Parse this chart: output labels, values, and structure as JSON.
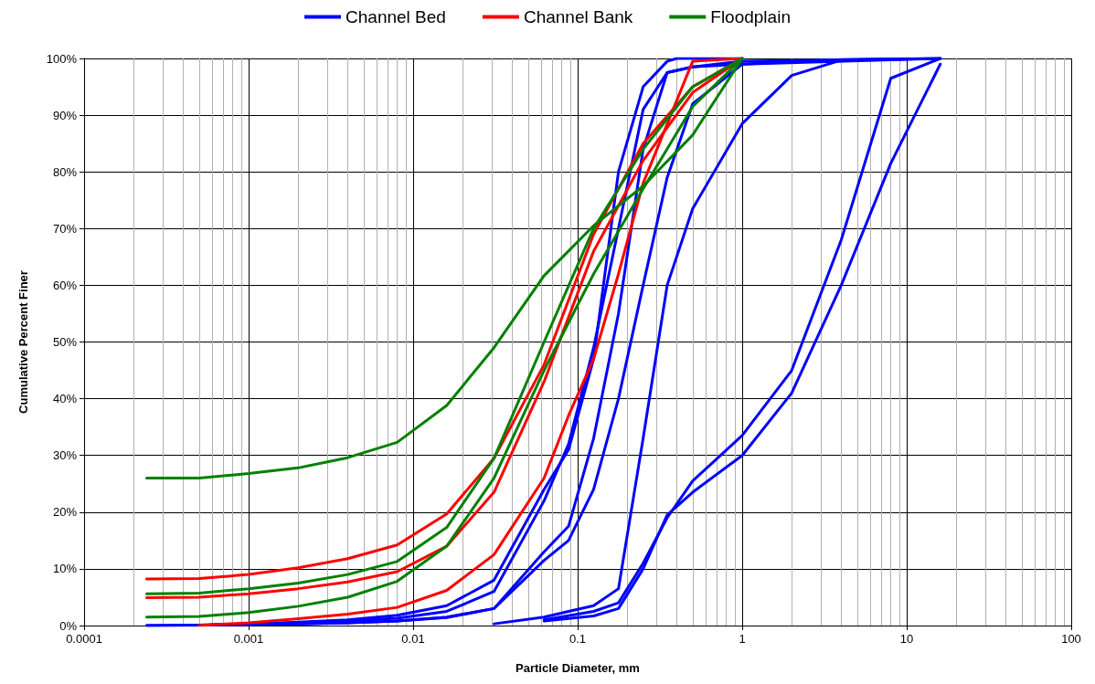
{
  "chart_data": {
    "type": "line",
    "xlabel": "Particle Diameter, mm",
    "ylabel": "Cumulative Percent Finer",
    "log": "x",
    "grid": true,
    "legend": "top",
    "marker": "none",
    "line_style": "solid",
    "xlim": [
      0.0001,
      100
    ],
    "xticks": [
      0.0001,
      0.001,
      0.01,
      0.1,
      1,
      10,
      100
    ],
    "ylim": [
      0,
      100
    ],
    "yticks": [
      {
        "value": 0,
        "label": "0%"
      },
      {
        "value": 10,
        "label": "10%"
      },
      {
        "value": 20,
        "label": "20%"
      },
      {
        "value": 30,
        "label": "30%"
      },
      {
        "value": 40,
        "label": "40%"
      },
      {
        "value": 50,
        "label": "50%"
      },
      {
        "value": 60,
        "label": "60%"
      },
      {
        "value": 70,
        "label": "70%"
      },
      {
        "value": 80,
        "label": "80%"
      },
      {
        "value": 90,
        "label": "90%"
      },
      {
        "value": 100,
        "label": "100%"
      }
    ],
    "series": [
      {
        "name": "Channel Bed",
        "color": "#0000ff",
        "x": [
          0.00024,
          0.0005,
          0.001,
          0.002,
          0.004,
          0.008,
          0.016,
          0.031,
          0.0625,
          0.088,
          0.125,
          0.177,
          0.25,
          0.35,
          0.4,
          1
        ],
        "values": [
          0,
          0.1,
          0.3,
          0.6,
          1,
          1.8,
          3.5,
          8,
          24,
          31,
          47,
          80,
          95,
          99.5,
          100,
          100
        ]
      },
      {
        "color": "#0000ff",
        "x": [
          0.00024,
          0.0005,
          0.001,
          0.002,
          0.004,
          0.008,
          0.016,
          0.031,
          0.0625,
          0.088,
          0.125,
          0.177,
          0.25,
          0.35,
          0.5,
          1,
          16
        ],
        "values": [
          0,
          0.1,
          0.2,
          0.4,
          0.8,
          1.3,
          2.5,
          6,
          22,
          32,
          49,
          70,
          91,
          97.5,
          98.5,
          99,
          100
        ]
      },
      {
        "color": "#0000ff",
        "x": [
          0.0005,
          0.001,
          0.002,
          0.004,
          0.008,
          0.016,
          0.031,
          0.0625,
          0.088,
          0.125,
          0.177,
          0.25,
          0.35,
          0.5,
          1,
          16
        ],
        "values": [
          0.1,
          0.2,
          0.3,
          0.5,
          0.8,
          1.5,
          3,
          13,
          17.5,
          33,
          55,
          84,
          97.5,
          98.5,
          99.5,
          100
        ]
      },
      {
        "color": "#0000ff",
        "x": [
          0.001,
          0.002,
          0.004,
          0.008,
          0.016,
          0.031,
          0.0625,
          0.088,
          0.125,
          0.177,
          0.25,
          0.35,
          0.5,
          1,
          4,
          16
        ],
        "values": [
          0.2,
          0.3,
          0.5,
          0.8,
          1.4,
          3,
          11.5,
          15,
          24,
          40,
          60,
          79,
          92,
          99,
          99.8,
          100
        ]
      },
      {
        "color": "#0000ff",
        "x": [
          0.031,
          0.0625,
          0.088,
          0.125,
          0.177,
          0.25,
          0.35,
          0.5,
          1,
          2,
          4,
          16
        ],
        "values": [
          0.3,
          1.5,
          2.5,
          3.5,
          6.5,
          33,
          60,
          73.5,
          88.5,
          97,
          99.7,
          100
        ]
      },
      {
        "color": "#0000ff",
        "x": [
          0.0625,
          0.125,
          0.177,
          0.25,
          0.35,
          0.5,
          1,
          2,
          4,
          8,
          16
        ],
        "values": [
          1,
          2.5,
          4,
          11,
          19,
          25.5,
          33.5,
          45,
          68,
          96.5,
          100
        ]
      },
      {
        "color": "#0000ff",
        "x": [
          0.0625,
          0.125,
          0.177,
          0.25,
          0.35,
          0.5,
          1,
          2,
          4,
          8,
          16
        ],
        "values": [
          0.8,
          1.7,
          3,
          10,
          19.5,
          23.5,
          30,
          41,
          60,
          81.5,
          99
        ]
      },
      {
        "name": "Channel Bank",
        "color": "#ff0000",
        "x": [
          0.00024,
          0.0005,
          0.001,
          0.002,
          0.004,
          0.008,
          0.016,
          0.031,
          0.0625,
          0.125,
          0.25,
          0.5,
          1
        ],
        "values": [
          8.2,
          8.3,
          9,
          10.2,
          11.8,
          14.2,
          19.7,
          29.5,
          46,
          69,
          85,
          95,
          100
        ]
      },
      {
        "color": "#ff0000",
        "x": [
          0.00024,
          0.0005,
          0.001,
          0.002,
          0.004,
          0.008,
          0.016,
          0.031,
          0.0625,
          0.125,
          0.25,
          0.5,
          1
        ],
        "values": [
          4.9,
          5,
          5.6,
          6.5,
          7.7,
          9.5,
          14,
          23.5,
          43,
          66,
          82,
          94,
          100
        ]
      },
      {
        "color": "#ff0000",
        "x": [
          0.0005,
          0.001,
          0.002,
          0.004,
          0.008,
          0.016,
          0.031,
          0.0625,
          0.088,
          0.125,
          0.177,
          0.25,
          0.5,
          1
        ],
        "values": [
          0,
          0.5,
          1.2,
          2,
          3.2,
          6.2,
          12.5,
          26,
          37,
          47,
          62,
          78,
          99.5,
          100
        ]
      },
      {
        "name": "Floodplain",
        "color": "#008000",
        "x": [
          0.00024,
          0.0005,
          0.001,
          0.002,
          0.004,
          0.008,
          0.016,
          0.031,
          0.0625,
          0.125,
          0.25,
          0.5,
          1
        ],
        "values": [
          26,
          26,
          26.8,
          27.8,
          29.6,
          32.3,
          38.8,
          49,
          61.7,
          70.5,
          77.5,
          86.5,
          100
        ]
      },
      {
        "color": "#008000",
        "x": [
          0.00024,
          0.0005,
          0.001,
          0.002,
          0.004,
          0.008,
          0.016,
          0.031,
          0.0625,
          0.125,
          0.25,
          0.5,
          1
        ],
        "values": [
          5.6,
          5.7,
          6.5,
          7.5,
          9,
          11.3,
          17.3,
          29.5,
          50,
          70,
          84,
          95,
          100
        ]
      },
      {
        "color": "#008000",
        "x": [
          0.00024,
          0.0005,
          0.001,
          0.002,
          0.004,
          0.008,
          0.016,
          0.031,
          0.0625,
          0.125,
          0.25,
          0.5,
          1
        ],
        "values": [
          1.5,
          1.6,
          2.3,
          3.4,
          5,
          7.8,
          14,
          26,
          45,
          62,
          77,
          91.5,
          100
        ]
      }
    ]
  }
}
